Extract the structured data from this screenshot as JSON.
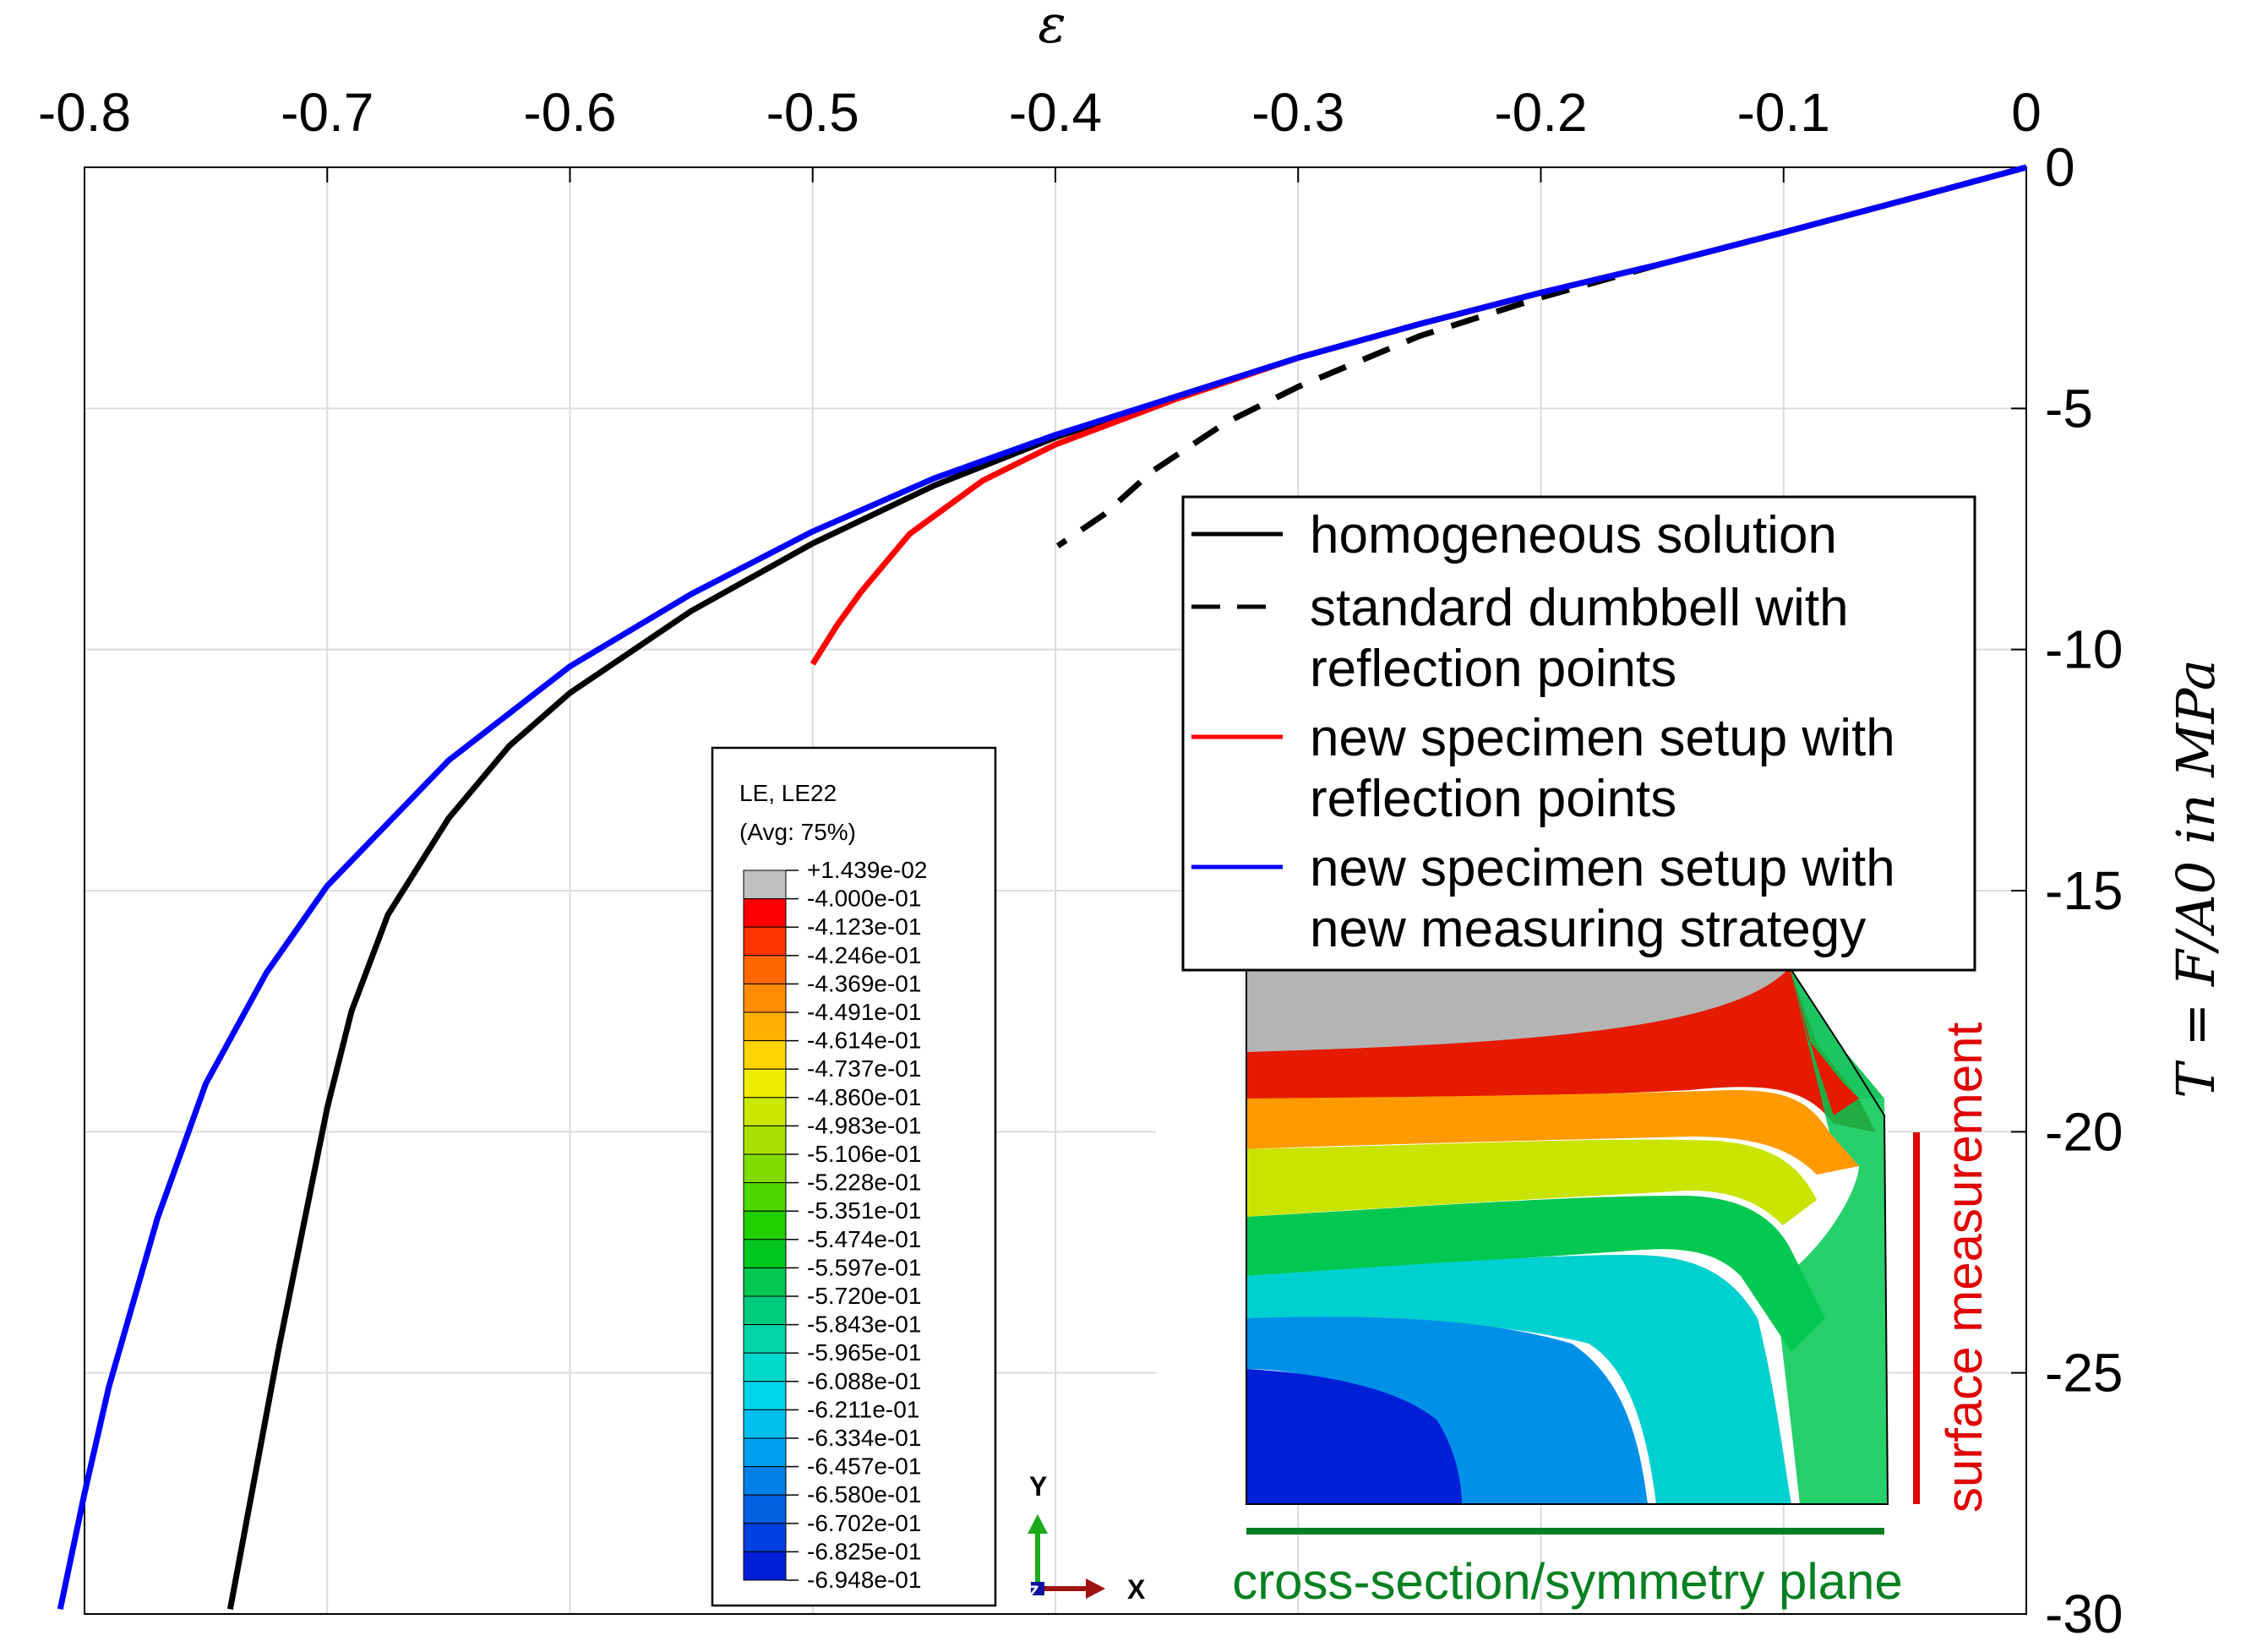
{
  "chart_data": {
    "type": "line",
    "xlabel": "ε",
    "ylabel": "T = F/A0 in MPa",
    "xlim": [
      -0.8,
      0
    ],
    "ylim": [
      -30,
      0
    ],
    "x_ticks": [
      -0.8,
      -0.7,
      -0.6,
      -0.5,
      -0.4,
      -0.3,
      -0.2,
      -0.1,
      0
    ],
    "x_tick_labels": [
      "-0.8",
      "-0.7",
      "-0.6",
      "-0.5",
      "-0.4",
      "-0.3",
      "-0.2",
      "-0.1",
      "0"
    ],
    "y_ticks": [
      0,
      -5,
      -10,
      -15,
      -20,
      -25,
      -30
    ],
    "y_tick_labels": [
      "0",
      "-5",
      "-10",
      "-15",
      "-20",
      "-25",
      "-30"
    ],
    "x_axis_position": "top",
    "y_axis_position": "right",
    "grid": true,
    "legend_position": "right-middle",
    "series": [
      {
        "name": "homogeneous solution",
        "color": "#000000",
        "style": "solid",
        "points": [
          [
            0,
            0
          ],
          [
            -0.05,
            -0.68
          ],
          [
            -0.1,
            -1.35
          ],
          [
            -0.15,
            -2.0
          ],
          [
            -0.2,
            -2.6
          ],
          [
            -0.25,
            -3.25
          ],
          [
            -0.3,
            -3.95
          ],
          [
            -0.35,
            -4.75
          ],
          [
            -0.4,
            -5.6
          ],
          [
            -0.45,
            -6.6
          ],
          [
            -0.5,
            -7.8
          ],
          [
            -0.55,
            -9.2
          ],
          [
            -0.6,
            -10.9
          ],
          [
            -0.625,
            -12.0
          ],
          [
            -0.65,
            -13.5
          ],
          [
            -0.675,
            -15.5
          ],
          [
            -0.69,
            -17.5
          ],
          [
            -0.7,
            -19.5
          ],
          [
            -0.71,
            -22.0
          ],
          [
            -0.72,
            -24.5
          ],
          [
            -0.73,
            -27.2
          ],
          [
            -0.74,
            -29.9
          ]
        ]
      },
      {
        "name": "standard dumbbell with reflection points",
        "color": "#000000",
        "style": "dashed",
        "points": [
          [
            0,
            0
          ],
          [
            -0.05,
            -0.68
          ],
          [
            -0.1,
            -1.35
          ],
          [
            -0.15,
            -2.0
          ],
          [
            -0.2,
            -2.7
          ],
          [
            -0.25,
            -3.5
          ],
          [
            -0.3,
            -4.55
          ],
          [
            -0.33,
            -5.3
          ],
          [
            -0.36,
            -6.3
          ],
          [
            -0.38,
            -7.2
          ],
          [
            -0.399,
            -7.85
          ]
        ]
      },
      {
        "name": "new specimen setup with reflection points",
        "color": "#ff0000",
        "style": "solid",
        "points": [
          [
            0,
            0
          ],
          [
            -0.05,
            -0.68
          ],
          [
            -0.1,
            -1.35
          ],
          [
            -0.15,
            -2.0
          ],
          [
            -0.2,
            -2.6
          ],
          [
            -0.25,
            -3.25
          ],
          [
            -0.3,
            -3.95
          ],
          [
            -0.35,
            -4.8
          ],
          [
            -0.4,
            -5.75
          ],
          [
            -0.43,
            -6.5
          ],
          [
            -0.46,
            -7.6
          ],
          [
            -0.48,
            -8.8
          ],
          [
            -0.49,
            -9.5
          ],
          [
            -0.5,
            -10.3
          ]
        ]
      },
      {
        "name": "new specimen setup with new measuring strategy",
        "color": "#0000ff",
        "style": "solid",
        "points": [
          [
            0,
            0
          ],
          [
            -0.05,
            -0.68
          ],
          [
            -0.1,
            -1.35
          ],
          [
            -0.15,
            -2.0
          ],
          [
            -0.2,
            -2.6
          ],
          [
            -0.25,
            -3.25
          ],
          [
            -0.3,
            -3.95
          ],
          [
            -0.35,
            -4.75
          ],
          [
            -0.4,
            -5.55
          ],
          [
            -0.45,
            -6.45
          ],
          [
            -0.5,
            -7.55
          ],
          [
            -0.55,
            -8.85
          ],
          [
            -0.6,
            -10.35
          ],
          [
            -0.65,
            -12.3
          ],
          [
            -0.7,
            -14.9
          ],
          [
            -0.725,
            -16.7
          ],
          [
            -0.75,
            -19.0
          ],
          [
            -0.77,
            -21.8
          ],
          [
            -0.79,
            -25.3
          ],
          [
            -0.8,
            -27.5
          ],
          [
            -0.81,
            -29.9
          ]
        ]
      }
    ]
  },
  "legend": {
    "entries": [
      {
        "lines": [
          "homogeneous solution"
        ]
      },
      {
        "lines": [
          "standard dumbbell with",
          "reflection points"
        ]
      },
      {
        "lines": [
          "new specimen setup with",
          "reflection points"
        ]
      },
      {
        "lines": [
          "new specimen setup with",
          "new measuring strategy"
        ]
      }
    ]
  },
  "colorbar": {
    "title_line1": "LE, LE22",
    "title_line2": "(Avg: 75%)",
    "labels": [
      "+1.439e-02",
      "-4.000e-01",
      "-4.123e-01",
      "-4.246e-01",
      "-4.369e-01",
      "-4.491e-01",
      "-4.614e-01",
      "-4.737e-01",
      "-4.860e-01",
      "-4.983e-01",
      "-5.106e-01",
      "-5.228e-01",
      "-5.351e-01",
      "-5.474e-01",
      "-5.597e-01",
      "-5.720e-01",
      "-5.843e-01",
      "-5.965e-01",
      "-6.088e-01",
      "-6.211e-01",
      "-6.334e-01",
      "-6.457e-01",
      "-6.580e-01",
      "-6.702e-01",
      "-6.825e-01",
      "-6.948e-01"
    ],
    "colors": [
      "#c0c0c0",
      "#ff0000",
      "#ff3300",
      "#ff6600",
      "#ff8c00",
      "#ffb000",
      "#ffd400",
      "#f0ee00",
      "#cce800",
      "#a8e000",
      "#80dc00",
      "#4ed800",
      "#22d000",
      "#00c820",
      "#00c850",
      "#00cc80",
      "#00d4a8",
      "#00d8cc",
      "#00d4e8",
      "#00c0f0",
      "#00a0f0",
      "#0080e8",
      "#0060e0",
      "#0040e0",
      "#0020d8"
    ]
  },
  "triad": {
    "y": "Y",
    "z": "Z",
    "x": "X"
  },
  "annotations": {
    "surface": "surface measurement",
    "cross_section": "cross-section/symmetry plane"
  }
}
